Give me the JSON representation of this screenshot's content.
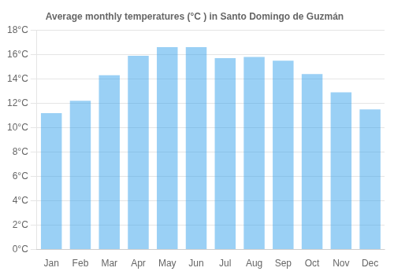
{
  "chart_data": {
    "type": "bar",
    "title": "Average monthly temperatures (°C ) in Santo Domingo de Guzmán",
    "categories": [
      "Jan",
      "Feb",
      "Mar",
      "Apr",
      "May",
      "Jun",
      "Jul",
      "Aug",
      "Sep",
      "Oct",
      "Nov",
      "Dec"
    ],
    "values": [
      11.2,
      12.2,
      14.3,
      15.9,
      16.6,
      16.6,
      15.7,
      15.8,
      15.5,
      14.4,
      12.9,
      11.5
    ],
    "ylim": [
      0,
      18
    ],
    "yticks": [
      {
        "value": 0,
        "label": "0°C"
      },
      {
        "value": 2,
        "label": "2°C"
      },
      {
        "value": 4,
        "label": "4°C"
      },
      {
        "value": 6,
        "label": "6°C"
      },
      {
        "value": 8,
        "label": "8°C"
      },
      {
        "value": 10,
        "label": "10°C"
      },
      {
        "value": 12,
        "label": "12°C"
      },
      {
        "value": 14,
        "label": "14°C"
      },
      {
        "value": 16,
        "label": "16°C"
      },
      {
        "value": 18,
        "label": "18°C"
      }
    ],
    "grid": true
  }
}
